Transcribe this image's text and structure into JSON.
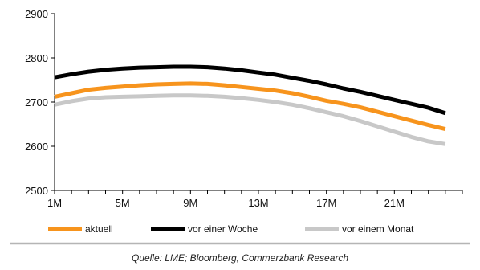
{
  "chart_data": {
    "type": "line",
    "x": [
      1,
      2,
      3,
      4,
      5,
      6,
      7,
      8,
      9,
      10,
      11,
      12,
      13,
      14,
      15,
      16,
      17,
      18,
      19,
      20,
      21,
      22,
      23,
      24
    ],
    "x_tick_labels": [
      "1M",
      "5M",
      "9M",
      "13M",
      "17M",
      "21M"
    ],
    "x_tick_values": [
      1,
      5,
      9,
      13,
      17,
      21
    ],
    "xlim": [
      1,
      25
    ],
    "ylim": [
      2500,
      2900
    ],
    "y_ticks": [
      2500,
      2600,
      2700,
      2800,
      2900
    ],
    "grid": false,
    "legend_position": "bottom",
    "series": [
      {
        "name": "aktuell",
        "color": "#f7941d",
        "values": [
          2712,
          2720,
          2728,
          2732,
          2735,
          2738,
          2740,
          2741,
          2742,
          2741,
          2738,
          2734,
          2730,
          2726,
          2720,
          2712,
          2703,
          2696,
          2688,
          2678,
          2668,
          2658,
          2648,
          2639
        ]
      },
      {
        "name": "vor einer Woche",
        "color": "#000000",
        "values": [
          2756,
          2763,
          2769,
          2773,
          2776,
          2778,
          2779,
          2780,
          2780,
          2779,
          2776,
          2772,
          2767,
          2762,
          2755,
          2748,
          2740,
          2731,
          2723,
          2714,
          2705,
          2696,
          2687,
          2675
        ]
      },
      {
        "name": "vor einem Monat",
        "color": "#c8c8c8",
        "values": [
          2694,
          2702,
          2708,
          2711,
          2712,
          2713,
          2714,
          2715,
          2715,
          2714,
          2712,
          2709,
          2705,
          2700,
          2694,
          2686,
          2677,
          2668,
          2657,
          2645,
          2633,
          2621,
          2611,
          2605
        ]
      }
    ]
  },
  "source_text": "Quelle: LME; Bloomberg, Commerzbank Research"
}
